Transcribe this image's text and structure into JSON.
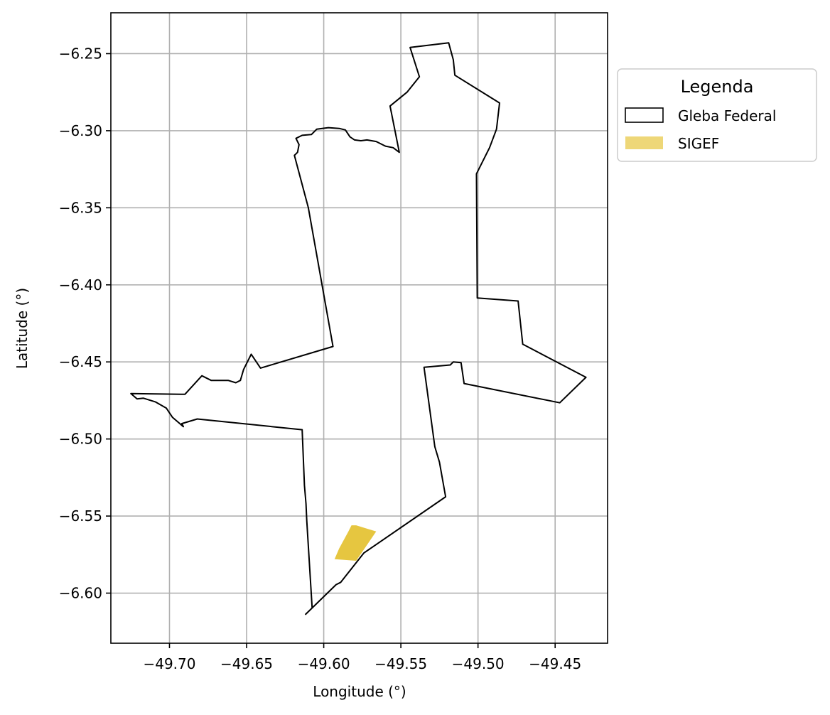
{
  "chart_data": {
    "type": "map",
    "xlabel": "Longitude (°)",
    "ylabel": "Latitude (°)",
    "xlim": [
      -49.738,
      -49.416
    ],
    "ylim": [
      -6.6325,
      -6.2235
    ],
    "grid": true,
    "x_ticks": [
      -49.7,
      -49.65,
      -49.6,
      -49.55,
      -49.5,
      -49.45
    ],
    "x_tick_labels": [
      "−49.70",
      "−49.65",
      "−49.60",
      "−49.55",
      "−49.50",
      "−49.45"
    ],
    "y_ticks": [
      -6.25,
      -6.3,
      -6.35,
      -6.4,
      -6.45,
      -6.5,
      -6.55,
      -6.6
    ],
    "y_tick_labels": [
      "−6.25",
      "−6.30",
      "−6.35",
      "−6.40",
      "−6.45",
      "−6.50",
      "−6.55",
      "−6.60"
    ],
    "legend": {
      "title": "Legenda",
      "placement": "outside-upper-right",
      "entries": [
        {
          "label": "Gleba Federal",
          "style": "outline",
          "edge_color": "#000000"
        },
        {
          "label": "SIGEF",
          "style": "fill",
          "fill_color": "#e2bc1e",
          "alpha": 0.6
        }
      ]
    },
    "series": [
      {
        "name": "Gleba Federal",
        "geometry": "polygon-outline",
        "edge_color": "#000000",
        "coordinates": [
          [
            -49.6075,
            -6.61
          ],
          [
            -49.611,
            -6.553
          ],
          [
            -49.6115,
            -6.542
          ],
          [
            -49.6125,
            -6.53
          ],
          [
            -49.614,
            -6.494
          ],
          [
            -49.682,
            -6.487
          ],
          [
            -49.692,
            -6.49
          ],
          [
            -49.691,
            -6.492
          ],
          [
            -49.698,
            -6.486
          ],
          [
            -49.702,
            -6.48
          ],
          [
            -49.709,
            -6.476
          ],
          [
            -49.717,
            -6.4735
          ],
          [
            -49.721,
            -6.474
          ],
          [
            -49.725,
            -6.4705
          ],
          [
            -49.69,
            -6.471
          ],
          [
            -49.679,
            -6.459
          ],
          [
            -49.673,
            -6.462
          ],
          [
            -49.662,
            -6.462
          ],
          [
            -49.657,
            -6.4635
          ],
          [
            -49.654,
            -6.462
          ],
          [
            -49.652,
            -6.455
          ],
          [
            -49.647,
            -6.445
          ],
          [
            -49.641,
            -6.454
          ],
          [
            -49.594,
            -6.44
          ],
          [
            -49.61,
            -6.35
          ],
          [
            -49.619,
            -6.316
          ],
          [
            -49.617,
            -6.314
          ],
          [
            -49.616,
            -6.309
          ],
          [
            -49.618,
            -6.305
          ],
          [
            -49.614,
            -6.303
          ],
          [
            -49.608,
            -6.3025
          ],
          [
            -49.6045,
            -6.299
          ],
          [
            -49.597,
            -6.298
          ],
          [
            -49.59,
            -6.2985
          ],
          [
            -49.586,
            -6.2995
          ],
          [
            -49.583,
            -6.304
          ],
          [
            -49.58,
            -6.306
          ],
          [
            -49.576,
            -6.3065
          ],
          [
            -49.572,
            -6.306
          ],
          [
            -49.566,
            -6.307
          ],
          [
            -49.56,
            -6.31
          ],
          [
            -49.555,
            -6.311
          ],
          [
            -49.551,
            -6.314
          ],
          [
            -49.557,
            -6.284
          ],
          [
            -49.546,
            -6.275
          ],
          [
            -49.538,
            -6.265
          ],
          [
            -49.544,
            -6.246
          ],
          [
            -49.519,
            -6.243
          ],
          [
            -49.516,
            -6.254
          ],
          [
            -49.515,
            -6.264
          ],
          [
            -49.486,
            -6.282
          ],
          [
            -49.488,
            -6.299
          ],
          [
            -49.4925,
            -6.311
          ],
          [
            -49.501,
            -6.328
          ],
          [
            -49.5005,
            -6.4085
          ],
          [
            -49.474,
            -6.4105
          ],
          [
            -49.471,
            -6.4385
          ],
          [
            -49.43,
            -6.46
          ],
          [
            -49.447,
            -6.4765
          ],
          [
            -49.509,
            -6.464
          ],
          [
            -49.511,
            -6.4505
          ],
          [
            -49.516,
            -6.45
          ],
          [
            -49.518,
            -6.452
          ],
          [
            -49.535,
            -6.4535
          ],
          [
            -49.528,
            -6.505
          ],
          [
            -49.525,
            -6.515
          ],
          [
            -49.521,
            -6.5375
          ],
          [
            -49.574,
            -6.574
          ],
          [
            -49.589,
            -6.593
          ],
          [
            -49.592,
            -6.5945
          ],
          [
            -49.612,
            -6.614
          ]
        ]
      },
      {
        "name": "SIGEF",
        "geometry": "polygon-fill",
        "fill_color": "#e2bc1e",
        "alpha": 0.85,
        "coordinates": [
          [
            -49.579,
            -6.579
          ],
          [
            -49.593,
            -6.578
          ],
          [
            -49.59,
            -6.571
          ],
          [
            -49.584,
            -6.56
          ],
          [
            -49.582,
            -6.556
          ],
          [
            -49.579,
            -6.556
          ],
          [
            -49.566,
            -6.56
          ]
        ]
      }
    ]
  }
}
